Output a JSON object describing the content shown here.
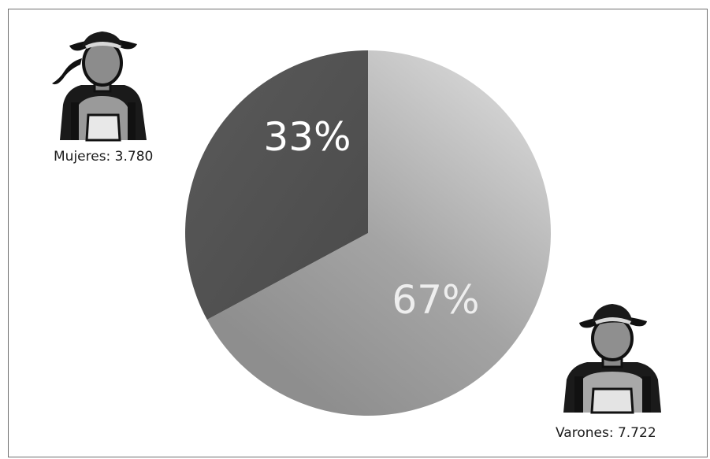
{
  "chart_data": {
    "type": "pie",
    "title": "",
    "slices": [
      {
        "label": "Mujeres",
        "value": 3780,
        "percent_label": "33%",
        "color": "#545454",
        "text_color": "#ffffff"
      },
      {
        "label": "Varones",
        "value": 7722,
        "percent_label": "67%",
        "color": "#a9a9a9",
        "text_color": "#eeeeee"
      }
    ],
    "legend": [
      {
        "text": "Mujeres: 3.780",
        "icon": "female-farmer-icon"
      },
      {
        "text": "Varones: 7.722",
        "icon": "male-farmer-icon"
      }
    ]
  }
}
